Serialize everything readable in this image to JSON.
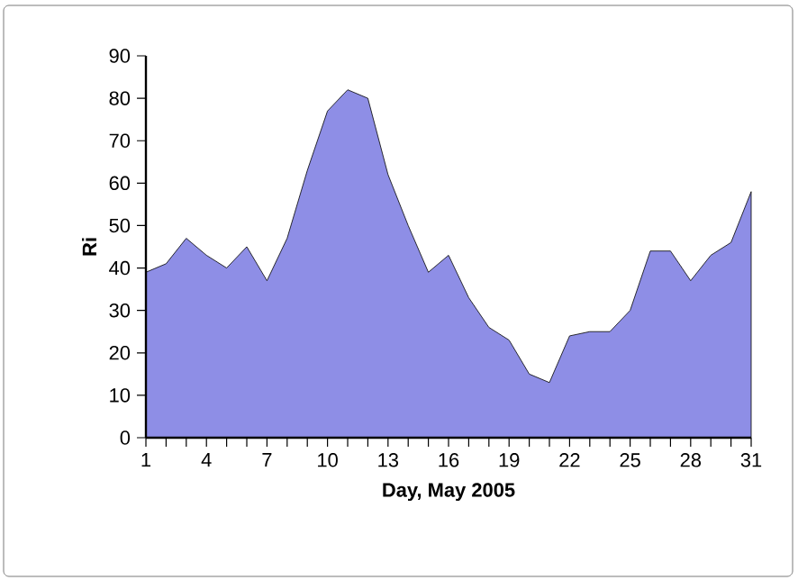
{
  "chart_data": {
    "type": "area",
    "xlabel": "Day, May 2005",
    "ylabel": "Ri",
    "x": [
      1,
      2,
      3,
      4,
      5,
      6,
      7,
      8,
      9,
      10,
      11,
      12,
      13,
      14,
      15,
      16,
      17,
      18,
      19,
      20,
      21,
      22,
      23,
      24,
      25,
      26,
      27,
      28,
      29,
      30,
      31
    ],
    "values": [
      39,
      41,
      47,
      43,
      40,
      45,
      37,
      47,
      63,
      77,
      82,
      80,
      62,
      50,
      39,
      43,
      33,
      26,
      23,
      15,
      13,
      24,
      25,
      25,
      30,
      44,
      44,
      37,
      43,
      46,
      58
    ],
    "color": "#8e8ee6",
    "xlim": [
      1,
      31
    ],
    "xticks": [
      1,
      {
        "value": 2,
        "label": null
      },
      {
        "value": 3,
        "label": null
      },
      4,
      {
        "value": 5,
        "label": null
      },
      {
        "value": 6,
        "label": null
      },
      7,
      {
        "value": 8,
        "label": null
      },
      {
        "value": 9,
        "label": null
      },
      10,
      {
        "value": 11,
        "label": null
      },
      {
        "value": 12,
        "label": null
      },
      13,
      {
        "value": 14,
        "label": null
      },
      {
        "value": 15,
        "label": null
      },
      16,
      {
        "value": 17,
        "label": null
      },
      {
        "value": 18,
        "label": null
      },
      19,
      {
        "value": 20,
        "label": null
      },
      {
        "value": 21,
        "label": null
      },
      22,
      {
        "value": 23,
        "label": null
      },
      {
        "value": 24,
        "label": null
      },
      25,
      {
        "value": 26,
        "label": null
      },
      {
        "value": 27,
        "label": null
      },
      28,
      {
        "value": 29,
        "label": null
      },
      {
        "value": 30,
        "label": null
      },
      31
    ],
    "ylim": [
      0,
      90
    ],
    "yticks": [
      0,
      10,
      20,
      30,
      40,
      50,
      60,
      70,
      80,
      90
    ]
  }
}
